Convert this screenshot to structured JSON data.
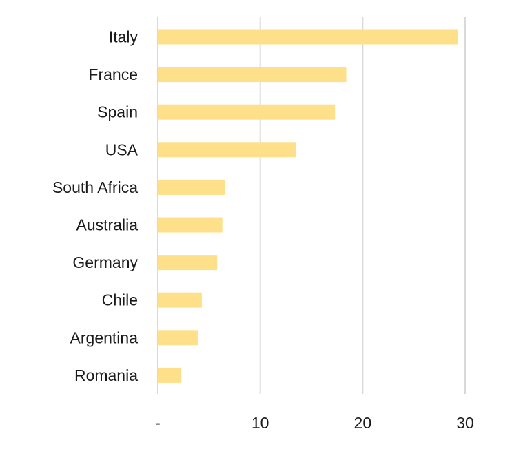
{
  "chart_data": {
    "type": "bar",
    "orientation": "horizontal",
    "title": "",
    "xlabel": "",
    "ylabel": "",
    "categories": [
      "Italy",
      "France",
      "Spain",
      "USA",
      "South Africa",
      "Australia",
      "Germany",
      "Chile",
      "Argentina",
      "Romania"
    ],
    "values": [
      29.3,
      18.4,
      17.3,
      13.5,
      6.6,
      6.3,
      5.8,
      4.3,
      3.9,
      2.3
    ],
    "xlim": [
      0,
      30
    ],
    "xticks": [
      0,
      10,
      20,
      30
    ],
    "xtick_labels": [
      "-",
      "10",
      "20",
      "30"
    ],
    "grid": "vertical",
    "legend": "none",
    "bar_color": "#ffe08a",
    "grid_color": "#d9d9d9"
  }
}
